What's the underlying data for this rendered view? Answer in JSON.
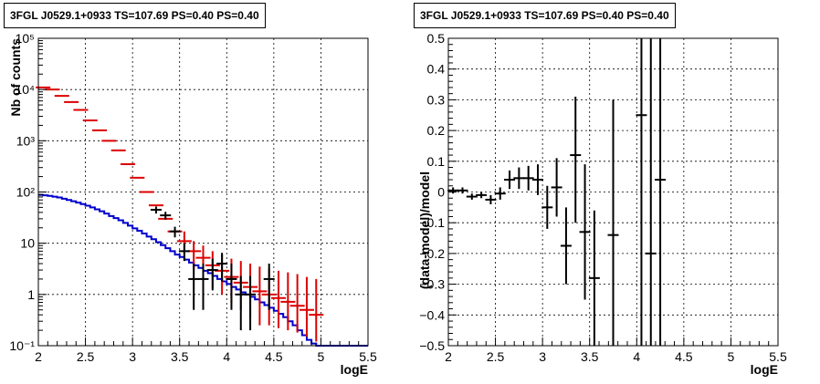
{
  "chart_data": [
    {
      "type": "line",
      "title": "3FGL J0529.1+0933 TS=107.69 PS=0.40 PS=0.40",
      "xlabel": "logE",
      "ylabel": "Nb of counts",
      "xlim": [
        2,
        5.5
      ],
      "ylim": [
        0.1,
        100000
      ],
      "yscale": "log",
      "grid": true,
      "xticks": [
        "2",
        "2.5",
        "3",
        "3.5",
        "4",
        "4.5",
        "5",
        "5.5"
      ],
      "yticks": [
        "10⁻¹",
        "1",
        "10",
        "10²",
        "10³",
        "10⁴",
        "10⁵"
      ],
      "colors": {
        "model_total": "#dd0000",
        "model_component": "#0000cc",
        "data": "#000000"
      },
      "series": [
        {
          "x": [
            2.05,
            2.15,
            2.25,
            2.35,
            2.45,
            2.55,
            2.65,
            2.75,
            2.85,
            2.95,
            3.05,
            3.15,
            3.25,
            3.35,
            3.45,
            3.55,
            3.65,
            3.75,
            3.85,
            3.95,
            4.05,
            4.15,
            4.25,
            4.35,
            4.45,
            4.55,
            4.65,
            4.75,
            4.85,
            4.95
          ],
          "values": [
            11000,
            10000,
            7500,
            5700,
            4000,
            2500,
            1600,
            1000,
            650,
            350,
            190,
            100,
            55,
            30,
            17,
            11,
            7,
            5.2,
            3.7,
            2.9,
            2.2,
            1.7,
            1.4,
            1.15,
            1.0,
            0.85,
            0.72,
            0.6,
            0.5,
            0.4
          ],
          "lower": [
            null,
            null,
            null,
            null,
            null,
            null,
            null,
            null,
            null,
            null,
            null,
            null,
            null,
            null,
            null,
            6,
            3,
            2,
            1.3,
            1,
            0.7,
            0.5,
            0.35,
            0.25,
            0.25,
            0.22,
            0.2,
            0.18,
            0.15,
            0.12
          ],
          "upper": [
            null,
            null,
            null,
            null,
            null,
            null,
            null,
            null,
            null,
            null,
            null,
            null,
            null,
            null,
            null,
            17,
            11,
            9,
            7,
            6,
            5,
            4.5,
            4,
            3.5,
            3.2,
            2.9,
            2.7,
            2.5,
            2.2,
            2.0
          ]
        },
        {
          "step_edges": [
            2.0,
            2.05,
            2.1,
            2.15,
            2.2,
            2.25,
            2.3,
            2.35,
            2.4,
            2.45,
            2.5,
            2.55,
            2.6,
            2.65,
            2.7,
            2.75,
            2.8,
            2.85,
            2.9,
            2.95,
            3.0,
            3.05,
            3.1,
            3.15,
            3.2,
            3.25,
            3.3,
            3.35,
            3.4,
            3.45,
            3.5,
            3.55,
            3.6,
            3.65,
            3.7,
            3.75,
            3.8,
            3.85,
            3.9,
            3.95,
            4.0,
            4.05,
            4.1,
            4.15,
            4.2,
            4.25,
            4.3,
            4.35,
            4.4,
            4.45,
            4.5,
            4.55,
            4.6,
            4.65,
            4.7,
            4.75,
            4.8,
            4.85,
            4.9,
            4.95,
            5.0,
            5.5
          ],
          "values": [
            88,
            86,
            84,
            81,
            78,
            74,
            70,
            66,
            62,
            58,
            54,
            50,
            46,
            42,
            38,
            34,
            31,
            28,
            25,
            22,
            19.5,
            17.5,
            15.5,
            13.5,
            12,
            10.5,
            9.2,
            8,
            7,
            6,
            5.4,
            4.8,
            4.2,
            3.7,
            3.3,
            2.9,
            2.6,
            2.3,
            2.0,
            1.8,
            1.6,
            1.4,
            1.25,
            1.1,
            1.0,
            0.9,
            0.8,
            0.7,
            0.62,
            0.55,
            0.48,
            0.42,
            0.36,
            0.3,
            0.25,
            0.2,
            0.16,
            0.13,
            0.11,
            0.1,
            0.1
          ]
        },
        {
          "x": [
            3.25,
            3.35,
            3.45,
            3.55,
            3.65,
            3.75,
            3.85,
            3.95,
            4.05,
            4.15,
            4.25,
            4.45
          ],
          "values": [
            45,
            35,
            17,
            7,
            2,
            2,
            3,
            4,
            2,
            1,
            1,
            2
          ],
          "lower": [
            38,
            29,
            13,
            4.5,
            0.5,
            0.5,
            1.2,
            1.8,
            0.5,
            0.2,
            0.2,
            0.5
          ],
          "upper": [
            52,
            41,
            21,
            10,
            4,
            4,
            5,
            6.5,
            4,
            2.3,
            2.3,
            4
          ]
        }
      ]
    },
    {
      "type": "scatter",
      "title": "3FGL J0529.1+0933 TS=107.69 PS=0.40 PS=0.40",
      "xlabel": "logE",
      "ylabel": "(data-model)/model",
      "xlim": [
        2,
        5.5
      ],
      "ylim": [
        -0.5,
        0.5
      ],
      "grid": true,
      "xticks": [
        "2",
        "2.5",
        "3",
        "3.5",
        "4",
        "4.5",
        "5",
        "5.5"
      ],
      "yticks": [
        "−0.5",
        "−0.4",
        "−0.3",
        "−0.2",
        "−0.1",
        "0",
        "0.1",
        "0.2",
        "0.3",
        "0.4",
        "0.5"
      ],
      "series": [
        {
          "x": [
            2.05,
            2.15,
            2.25,
            2.35,
            2.45,
            2.55,
            2.65,
            2.75,
            2.85,
            2.95,
            3.05,
            3.15,
            3.25,
            3.35,
            3.45,
            3.55,
            3.75,
            4.05,
            4.15,
            4.25
          ],
          "values": [
            0.005,
            0.005,
            -0.015,
            -0.01,
            -0.025,
            -0.005,
            0.04,
            0.045,
            0.045,
            0.04,
            -0.05,
            0.015,
            -0.175,
            0.12,
            -0.13,
            -0.28,
            -0.14,
            0.25,
            -0.2,
            0.04
          ],
          "lower": [
            -0.005,
            -0.005,
            -0.025,
            -0.02,
            -0.04,
            -0.025,
            0.01,
            0.01,
            0.005,
            -0.01,
            -0.12,
            -0.08,
            -0.3,
            -0.1,
            -0.35,
            -0.5,
            -0.5,
            -0.5,
            -0.5,
            -0.5
          ],
          "upper": [
            0.015,
            0.015,
            -0.005,
            0.0,
            -0.01,
            0.015,
            0.07,
            0.08,
            0.085,
            0.09,
            0.02,
            0.11,
            -0.05,
            0.31,
            0.09,
            -0.06,
            0.3,
            0.5,
            0.5,
            0.5
          ]
        }
      ]
    }
  ]
}
